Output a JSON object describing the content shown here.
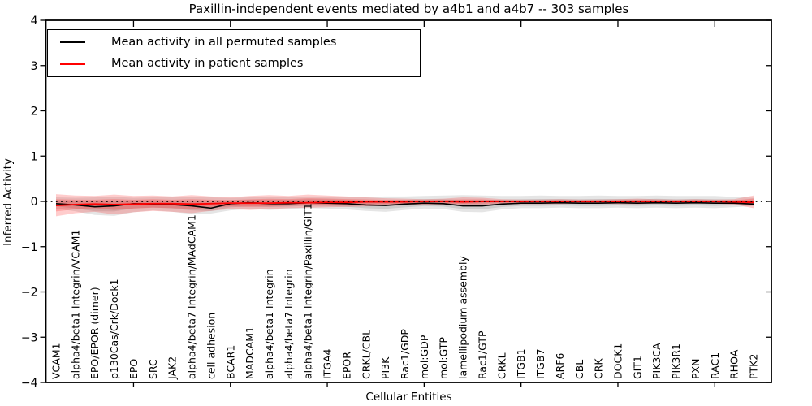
{
  "legend": {
    "items": [
      {
        "label": "Mean activity in all permuted samples",
        "color": "#000000"
      },
      {
        "label": "Mean activity in patient samples",
        "color": "#ff0000"
      }
    ]
  },
  "chart_data": {
    "type": "line",
    "title": "Paxillin-independent events mediated by a4b1 and a4b7 -- 303 samples",
    "xlabel": "Cellular Entities",
    "ylabel": "Inferred Activity",
    "ylim": [
      -4,
      4
    ],
    "yticks": [
      4,
      3,
      2,
      1,
      0,
      -1,
      -2,
      -3,
      -4
    ],
    "grid": false,
    "legend_position": "upper left",
    "zero_line": {
      "value": 0,
      "style": "dotted",
      "color": "#000000"
    },
    "major_tick_indices": [
      4,
      9,
      14,
      19,
      24,
      29,
      34
    ],
    "categories": [
      "VCAM1",
      "alpha4/beta1 Integrin/VCAM1",
      "EPO/EPOR (dimer)",
      "p130Cas/Crk/Dock1",
      "EPO",
      "SRC",
      "JAK2",
      "alpha4/beta7 Integrin/MAdCAM1",
      "cell adhesion",
      "BCAR1",
      "MADCAM1",
      "alpha4/beta1 Integrin",
      "alpha4/beta7 Integrin",
      "alpha4/beta1 Integrin/Paxillin/GIT1",
      "ITGA4",
      "EPOR",
      "CRKL/CBL",
      "PI3K",
      "Rac1/GDP",
      "mol:GDP",
      "mol:GTP",
      "lamellipodium assembly",
      "Rac1/GTP",
      "CRKL",
      "ITGB1",
      "ITGB7",
      "ARF6",
      "CBL",
      "CRK",
      "DOCK1",
      "GIT1",
      "PIK3CA",
      "PIK3R1",
      "PXN",
      "RAC1",
      "RHOA",
      "PTK2"
    ],
    "series": [
      {
        "name": "Mean activity in all permuted samples",
        "color": "#000000",
        "band_color": "rgba(0,0,0,0.10)",
        "mean": [
          -0.05,
          -0.08,
          -0.12,
          -0.1,
          -0.05,
          -0.06,
          -0.07,
          -0.1,
          -0.15,
          -0.05,
          -0.03,
          -0.05,
          -0.05,
          -0.03,
          -0.04,
          -0.05,
          -0.08,
          -0.09,
          -0.06,
          -0.04,
          -0.05,
          -0.1,
          -0.1,
          -0.06,
          -0.04,
          -0.04,
          -0.03,
          -0.04,
          -0.04,
          -0.03,
          -0.04,
          -0.03,
          -0.04,
          -0.03,
          -0.04,
          -0.04,
          -0.06
        ],
        "band_upper": [
          0.09,
          0.08,
          0.09,
          0.1,
          0.08,
          0.09,
          0.09,
          0.1,
          0.09,
          0.08,
          0.09,
          0.1,
          0.1,
          0.11,
          0.11,
          0.1,
          0.1,
          0.11,
          0.11,
          0.12,
          0.13,
          0.14,
          0.13,
          0.12,
          0.12,
          0.13,
          0.12,
          0.12,
          0.13,
          0.12,
          0.12,
          0.13,
          0.12,
          0.12,
          0.12,
          0.1,
          0.08
        ],
        "band_lower": [
          -0.16,
          -0.22,
          -0.3,
          -0.32,
          -0.24,
          -0.2,
          -0.23,
          -0.28,
          -0.27,
          -0.2,
          -0.17,
          -0.19,
          -0.17,
          -0.15,
          -0.16,
          -0.18,
          -0.21,
          -0.23,
          -0.19,
          -0.16,
          -0.17,
          -0.23,
          -0.24,
          -0.18,
          -0.15,
          -0.15,
          -0.14,
          -0.15,
          -0.15,
          -0.14,
          -0.15,
          -0.14,
          -0.15,
          -0.14,
          -0.15,
          -0.13,
          -0.1
        ]
      },
      {
        "name": "Mean activity in patient samples",
        "color": "#ff0000",
        "band_color": "rgba(255,0,0,0.20)",
        "mean": [
          -0.09,
          -0.07,
          -0.06,
          -0.07,
          -0.06,
          -0.05,
          -0.05,
          -0.06,
          -0.05,
          -0.04,
          -0.04,
          -0.04,
          -0.03,
          -0.03,
          -0.02,
          -0.02,
          -0.01,
          -0.01,
          -0.01,
          0.0,
          0.0,
          -0.01,
          0.0,
          0.0,
          0.0,
          0.0,
          0.0,
          0.0,
          0.0,
          0.0,
          0.0,
          0.0,
          0.0,
          0.0,
          0.0,
          -0.01,
          -0.02
        ],
        "band_upper": [
          0.16,
          0.13,
          0.12,
          0.15,
          0.12,
          0.13,
          0.11,
          0.14,
          0.11,
          0.09,
          0.12,
          0.14,
          0.12,
          0.15,
          0.13,
          0.11,
          0.09,
          0.07,
          0.06,
          0.05,
          0.06,
          0.09,
          0.08,
          0.05,
          0.04,
          0.04,
          0.05,
          0.04,
          0.04,
          0.05,
          0.06,
          0.05,
          0.04,
          0.05,
          0.04,
          0.05,
          0.13
        ],
        "band_lower": [
          -0.33,
          -0.26,
          -0.23,
          -0.29,
          -0.24,
          -0.21,
          -0.23,
          -0.26,
          -0.21,
          -0.17,
          -0.19,
          -0.17,
          -0.15,
          -0.14,
          -0.13,
          -0.12,
          -0.11,
          -0.1,
          -0.09,
          -0.08,
          -0.08,
          -0.09,
          -0.08,
          -0.07,
          -0.06,
          -0.06,
          -0.06,
          -0.05,
          -0.05,
          -0.06,
          -0.06,
          -0.05,
          -0.05,
          -0.05,
          -0.05,
          -0.07,
          -0.15
        ]
      }
    ]
  }
}
